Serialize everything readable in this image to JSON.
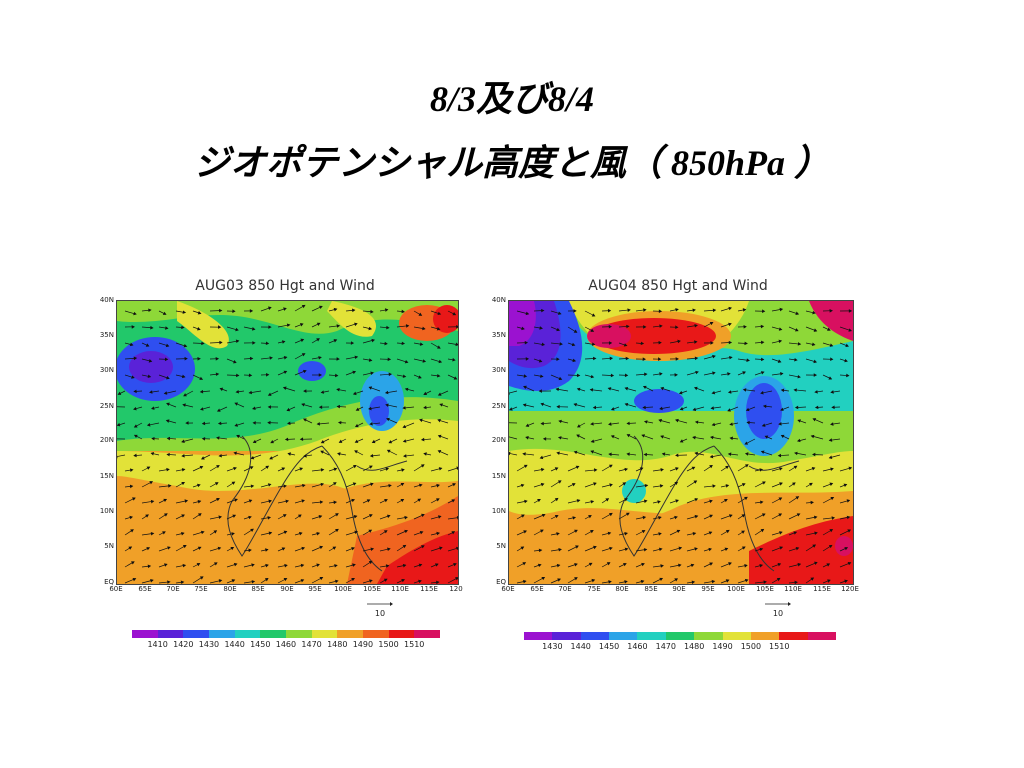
{
  "slide": {
    "title_line1": "8/3及び8/4",
    "title_line2": "ジオポテンシャル高度と風（ 850hPa ）"
  },
  "maps": [
    {
      "title": "AUG03 850 Hgt and Wind",
      "lat_labels": [
        "40N",
        "35N",
        "30N",
        "25N",
        "20N",
        "15N",
        "10N",
        "5N",
        "EQ"
      ],
      "lon_labels": [
        "60E",
        "65E",
        "70E",
        "75E",
        "80E",
        "85E",
        "90E",
        "95E",
        "100E",
        "105E",
        "110E",
        "115E",
        "120"
      ],
      "vector_scale_label": "10",
      "colorbar_colors": [
        "#9b12d0",
        "#5a22d8",
        "#2f4ff0",
        "#2ba4e8",
        "#22d0c0",
        "#22c86a",
        "#8ed838",
        "#e2e238",
        "#f0a028",
        "#f06420",
        "#e81818",
        "#d81060"
      ],
      "colorbar_labels": [
        "1410",
        "1420",
        "1430",
        "1440",
        "1450",
        "1460",
        "1470",
        "1480",
        "1490",
        "1500",
        "1510"
      ]
    },
    {
      "title": "AUG04 850 Hgt and Wind",
      "lat_labels": [
        "40N",
        "35N",
        "30N",
        "25N",
        "20N",
        "15N",
        "10N",
        "5N",
        "EQ"
      ],
      "lon_labels": [
        "60E",
        "65E",
        "70E",
        "75E",
        "80E",
        "85E",
        "90E",
        "95E",
        "100E",
        "105E",
        "110E",
        "115E",
        "120E"
      ],
      "vector_scale_label": "10",
      "colorbar_colors": [
        "#9b12d0",
        "#5a22d8",
        "#2f4ff0",
        "#2ba4e8",
        "#22d0c0",
        "#22c86a",
        "#8ed838",
        "#e2e238",
        "#f0a028",
        "#e81818",
        "#d81060"
      ],
      "colorbar_labels": [
        "1430",
        "1440",
        "1450",
        "1460",
        "1470",
        "1480",
        "1490",
        "1500",
        "1510"
      ]
    }
  ]
}
